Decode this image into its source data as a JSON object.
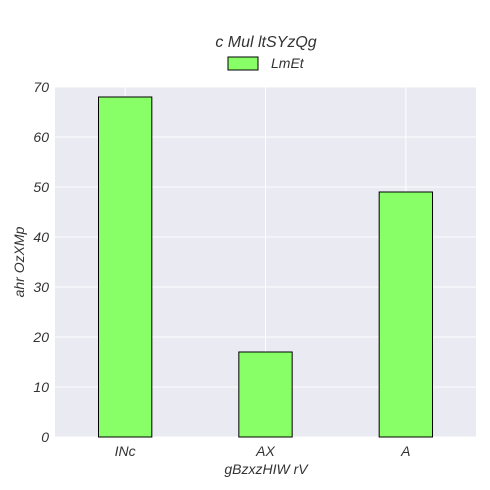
{
  "chart_data": {
    "type": "bar",
    "title": "c Mul ltSYzQg",
    "xlabel": "gBzxzHIW rV",
    "ylabel": "ahr  OzXMp",
    "categories": [
      "INc",
      "AX",
      "A"
    ],
    "series": [
      {
        "name": "LmEt",
        "values": [
          68,
          17,
          49
        ]
      }
    ],
    "ylim": [
      0,
      70
    ],
    "yticks": [
      0,
      10,
      20,
      30,
      40,
      50,
      60,
      70
    ],
    "grid": true,
    "legend": "top-center",
    "colors": {
      "bar_fill": "#88ff66",
      "bar_edge": "#000000",
      "plot_background": "#eaeaf2",
      "grid": "#ffffff"
    }
  }
}
